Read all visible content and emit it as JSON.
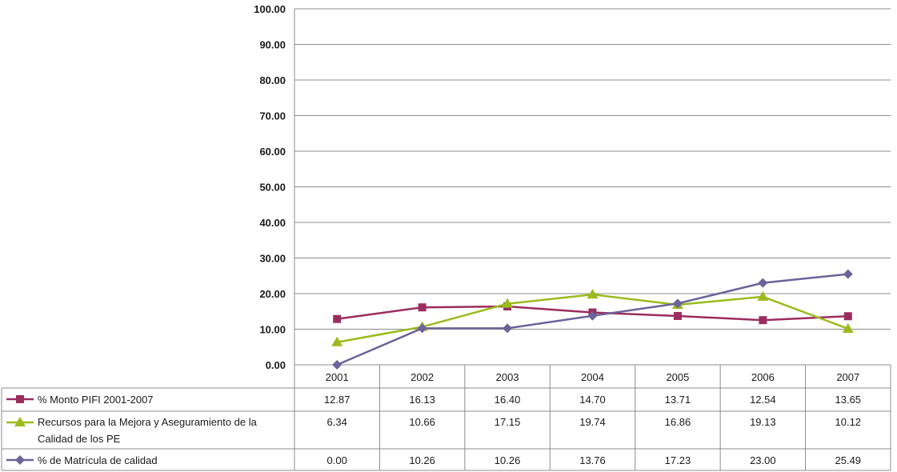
{
  "chart_data": {
    "type": "line",
    "title": "",
    "xlabel": "",
    "ylabel": "",
    "ylim": [
      0,
      100
    ],
    "yticks": [
      "0.00",
      "10.00",
      "20.00",
      "30.00",
      "40.00",
      "50.00",
      "60.00",
      "70.00",
      "80.00",
      "90.00",
      "100.00"
    ],
    "grid": true,
    "legend_position": "data-table-left",
    "categories": [
      "2001",
      "2002",
      "2003",
      "2004",
      "2005",
      "2006",
      "2007"
    ],
    "series": [
      {
        "name": "% Monto PIFI 2001-2007",
        "name_lines": [
          "% Monto PIFI 2001-2007"
        ],
        "marker": "square",
        "color": "#9b2d5e",
        "values": [
          12.87,
          16.13,
          16.4,
          14.7,
          13.71,
          12.54,
          13.65
        ],
        "labels": [
          "12.87",
          "16.13",
          "16.40",
          "14.70",
          "13.71",
          "12.54",
          "13.65"
        ]
      },
      {
        "name": "Recursos para la Mejora y Aseguramiento de la Calidad de los PE",
        "name_lines": [
          "Recursos para la Mejora y Aseguramiento de la",
          "Calidad de los PE"
        ],
        "marker": "triangle",
        "color": "#9bbb1c",
        "values": [
          6.34,
          10.66,
          17.15,
          19.74,
          16.86,
          19.13,
          10.12
        ],
        "labels": [
          "6.34",
          "10.66",
          "17.15",
          "19.74",
          "16.86",
          "19.13",
          "10.12"
        ]
      },
      {
        "name": "% de Matrícula de calidad",
        "name_lines": [
          "% de Matrícula de calidad"
        ],
        "marker": "diamond",
        "color": "#6b6499",
        "values": [
          0.0,
          10.26,
          10.26,
          13.76,
          17.23,
          23.0,
          25.49
        ],
        "labels": [
          "0.00",
          "10.26",
          "10.26",
          "13.76",
          "17.23",
          "23.00",
          "25.49"
        ]
      }
    ]
  }
}
